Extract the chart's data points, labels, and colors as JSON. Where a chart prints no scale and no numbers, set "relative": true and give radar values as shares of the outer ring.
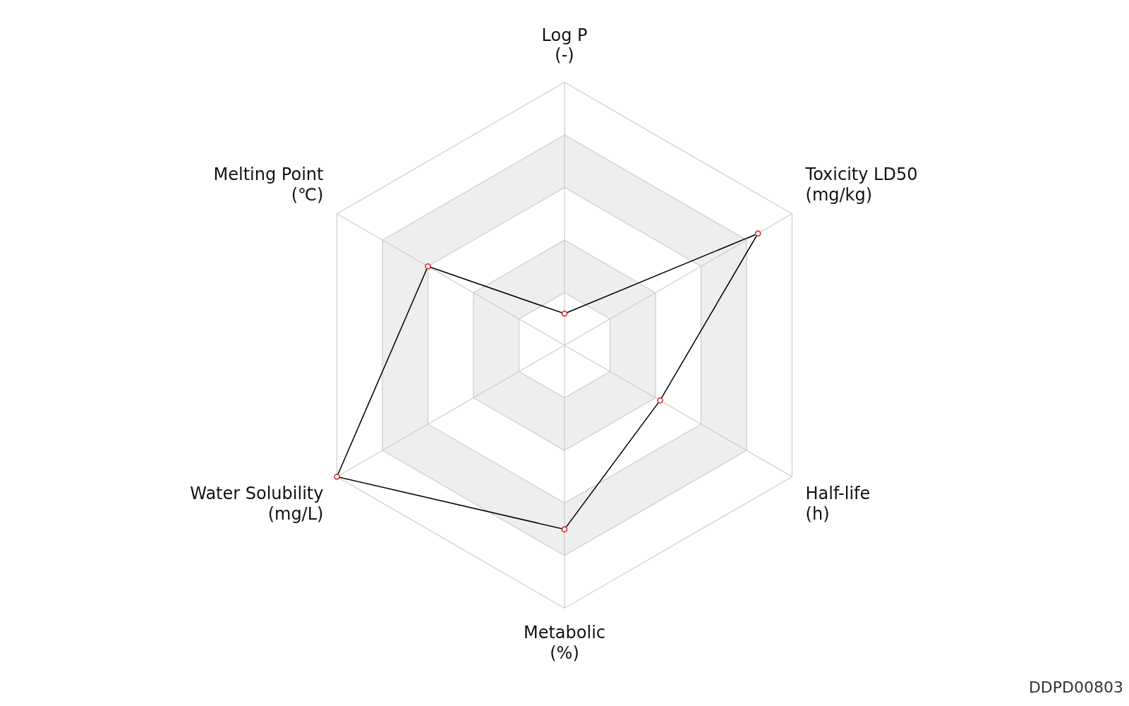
{
  "chart_data": {
    "type": "radar",
    "relative": true,
    "categories": [
      "Log P\n(-)",
      "Toxicity LD50\n(mg/kg)",
      "Half-life\n(h)",
      "Metabolic\n(%)",
      "Water Solubility\n(mg/L)",
      "Melting Point\n(℃)"
    ],
    "series": [
      {
        "color": "#000000",
        "values": [
          0.12,
          0.85,
          0.42,
          0.7,
          1.0,
          0.6
        ]
      }
    ],
    "marker": "circle",
    "legend": false,
    "annotations": [
      "DDPD00803"
    ]
  }
}
